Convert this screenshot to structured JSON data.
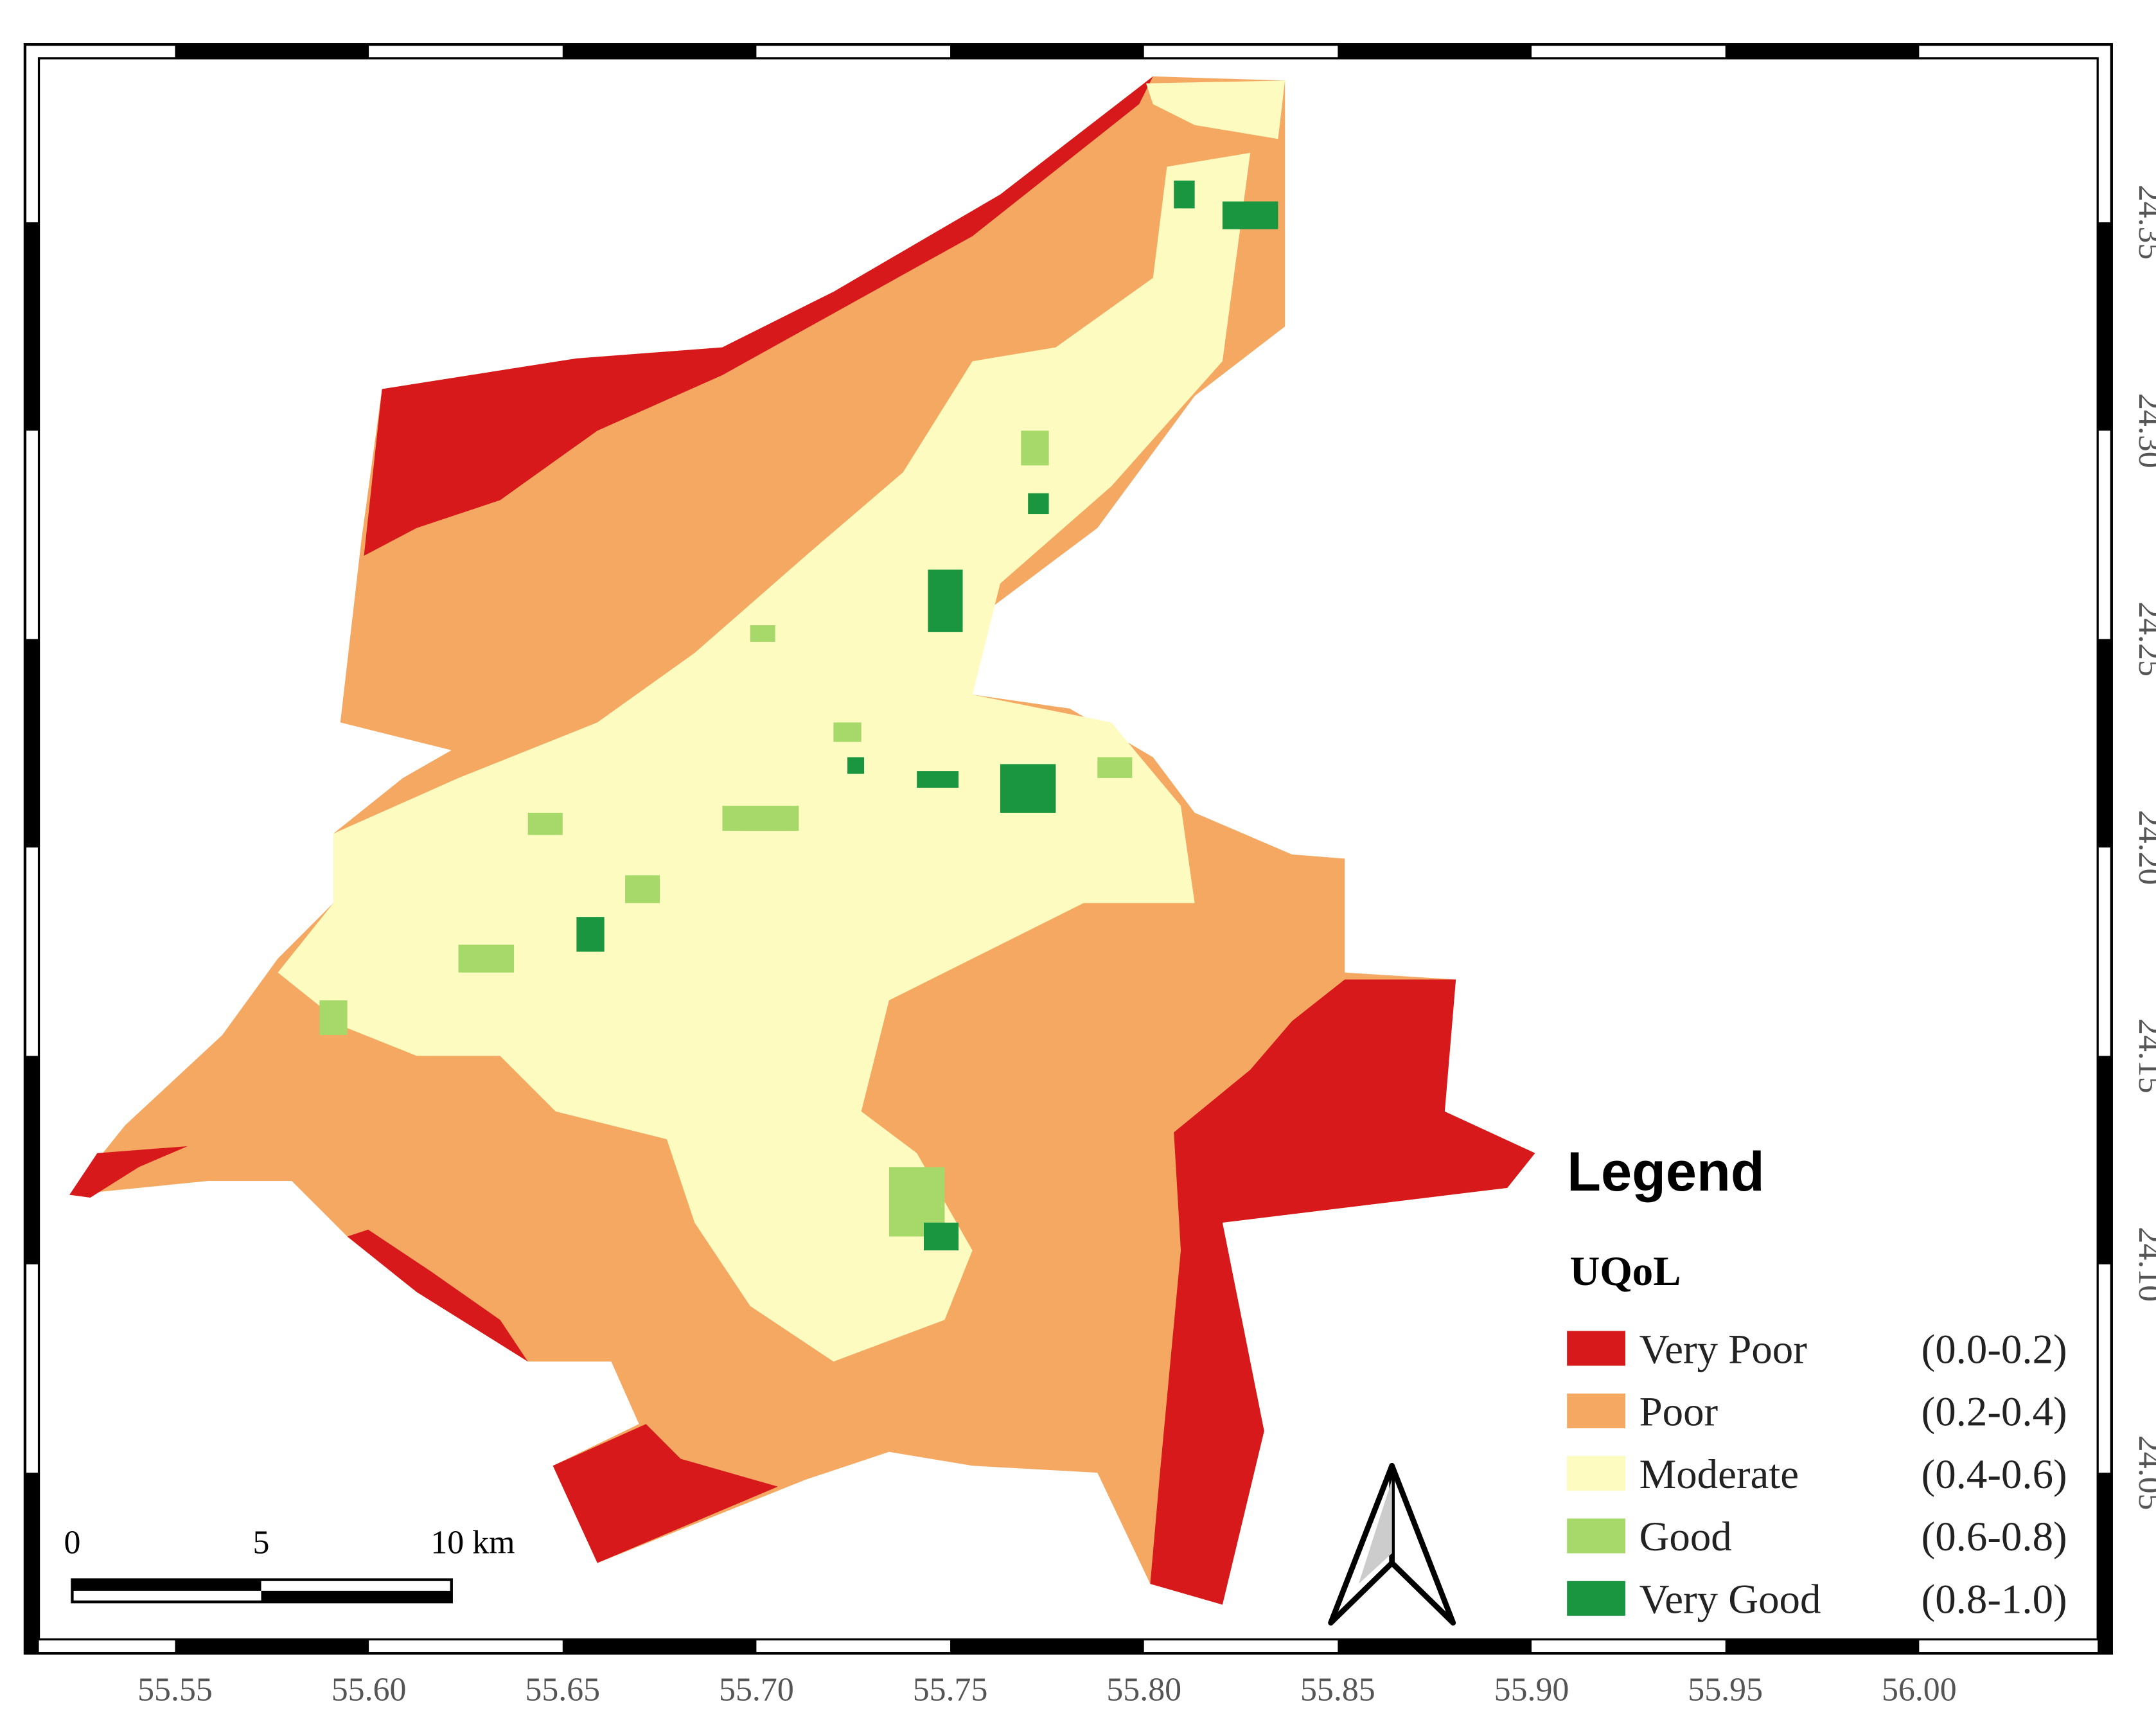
{
  "map": {
    "x_ticks": [
      "55.55",
      "55.60",
      "55.65",
      "55.70",
      "55.75",
      "55.80",
      "55.85",
      "55.90",
      "55.95",
      "56.00"
    ],
    "y_ticks": [
      "24.35",
      "24.30",
      "24.25",
      "24.20",
      "24.15",
      "24.10",
      "24.05"
    ],
    "scale_bar": [
      "0",
      "5",
      "10 km"
    ],
    "legend": {
      "title": "Legend",
      "subtitle": "UQoL",
      "items": [
        {
          "label": "Very Poor",
          "range": "(0.0-0.2)",
          "color": "#d7191c"
        },
        {
          "label": "Poor",
          "range": "(0.2-0.4)",
          "color": "#f4a862"
        },
        {
          "label": "Moderate",
          "range": "(0.4-0.6)",
          "color": "#fdfbbf"
        },
        {
          "label": "Good",
          "range": "(0.6-0.8)",
          "color": "#a6d96a"
        },
        {
          "label": "Very Good",
          "range": "(0.8-1.0)",
          "color": "#1a9641"
        }
      ]
    }
  }
}
